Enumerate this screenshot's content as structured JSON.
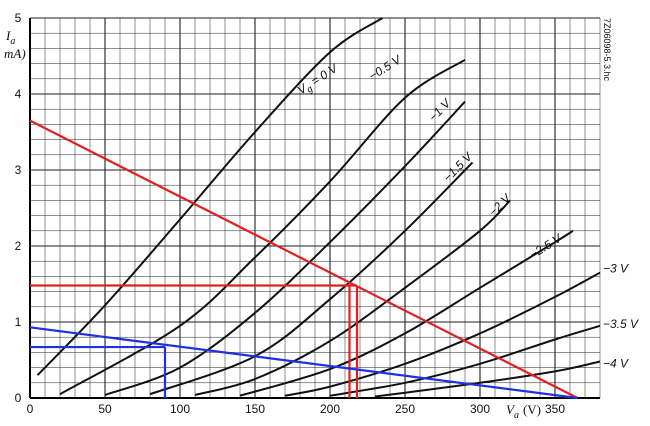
{
  "side_code": "7Z06098-5.3.hc",
  "chart_data": {
    "type": "line",
    "xlabel": "V",
    "xlabel_sub": "a",
    "xlabel_unit": "(V)",
    "ylabel": "I",
    "ylabel_sub": "a",
    "ylabel_unit": "mA)",
    "xlim": [
      0,
      380
    ],
    "ylim": [
      0,
      5
    ],
    "xticks": [
      0,
      50,
      100,
      150,
      200,
      250,
      300,
      350
    ],
    "yticks": [
      0,
      1,
      2,
      3,
      4,
      5
    ],
    "grid": true,
    "series": [
      {
        "name": "V",
        "name_sub": "g",
        "name_suffix": "= 0 V",
        "color": "#111111",
        "x": [
          5,
          50,
          100,
          150,
          200,
          235
        ],
        "y": [
          0.3,
          1.22,
          2.35,
          3.5,
          4.55,
          5.0
        ],
        "label_at": [
          193,
          4.15
        ]
      },
      {
        "name": "−0.5 V",
        "color": "#111111",
        "x": [
          20,
          100,
          150,
          200,
          250,
          290
        ],
        "y": [
          0.05,
          0.95,
          1.85,
          2.85,
          3.95,
          4.45
        ],
        "label_at": [
          238,
          4.3
        ]
      },
      {
        "name": "−1 V",
        "color": "#111111",
        "x": [
          50,
          100,
          150,
          200,
          250,
          290
        ],
        "y": [
          0.04,
          0.4,
          1.12,
          2.05,
          3.05,
          3.9
        ],
        "label_at": [
          275,
          3.75
        ]
      },
      {
        "name": "−1.5 V",
        "color": "#111111",
        "x": [
          80,
          150,
          200,
          250,
          295
        ],
        "y": [
          0.05,
          0.55,
          1.3,
          2.2,
          3.1
        ],
        "label_at": [
          287,
          3.0
        ]
      },
      {
        "name": "−2 V",
        "color": "#111111",
        "x": [
          110,
          150,
          200,
          250,
          300,
          320
        ],
        "y": [
          0.04,
          0.25,
          0.75,
          1.45,
          2.2,
          2.6
        ],
        "label_at": [
          315,
          2.5
        ]
      },
      {
        "name": "−2.5 V",
        "color": "#111111",
        "x": [
          140,
          200,
          250,
          300,
          350,
          362
        ],
        "y": [
          0.03,
          0.38,
          0.85,
          1.45,
          2.05,
          2.2
        ],
        "label_at": [
          345,
          1.95
        ]
      },
      {
        "name": "−3 V",
        "color": "#111111",
        "x": [
          170,
          200,
          250,
          300,
          350,
          380
        ],
        "y": [
          0.03,
          0.15,
          0.45,
          0.85,
          1.33,
          1.65
        ],
        "label_at": [
          382,
          1.65
        ]
      },
      {
        "name": "−3.5 V",
        "color": "#111111",
        "x": [
          200,
          250,
          300,
          350,
          380
        ],
        "y": [
          0.03,
          0.2,
          0.45,
          0.77,
          0.95
        ],
        "label_at": [
          382,
          0.92
        ]
      },
      {
        "name": "−4 V",
        "color": "#111111",
        "x": [
          230,
          250,
          300,
          350,
          380
        ],
        "y": [
          0.02,
          0.07,
          0.2,
          0.35,
          0.48
        ],
        "label_at": [
          382,
          0.4
        ]
      }
    ],
    "annotations": [
      {
        "kind": "load_line",
        "color": "#e02020",
        "x": [
          0,
          365
        ],
        "y": [
          3.65,
          0
        ]
      },
      {
        "kind": "quiescent_h",
        "color": "#e02020",
        "x": [
          0,
          218
        ],
        "y": [
          1.48,
          1.48
        ]
      },
      {
        "kind": "quiescent_v",
        "color": "#e02020",
        "x": [
          213,
          213
        ],
        "y": [
          0,
          1.48
        ]
      },
      {
        "kind": "quiescent_v",
        "color": "#e02020",
        "x": [
          218,
          218
        ],
        "y": [
          0,
          1.48
        ]
      },
      {
        "kind": "load_line",
        "color": "#2030e0",
        "x": [
          0,
          365
        ],
        "y": [
          0.93,
          0
        ]
      },
      {
        "kind": "quiescent_h",
        "color": "#2030e0",
        "x": [
          0,
          90
        ],
        "y": [
          0.67,
          0.67
        ]
      },
      {
        "kind": "quiescent_v",
        "color": "#2030e0",
        "x": [
          90,
          90
        ],
        "y": [
          0,
          0.67
        ]
      }
    ]
  }
}
